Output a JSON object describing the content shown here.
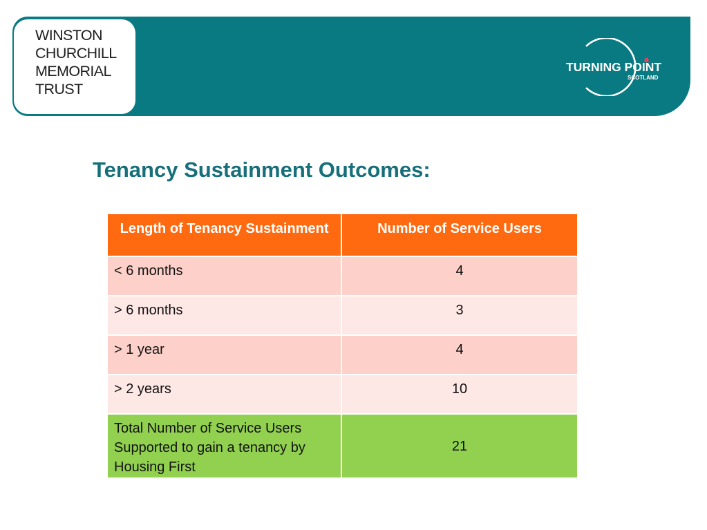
{
  "header": {
    "org_left": {
      "lines": [
        "WINSTON",
        "CHURCHILL",
        "MEMORIAL",
        "TRUST"
      ]
    },
    "org_right": {
      "name_line1": "TURNING POINT",
      "name_line2": "SCOTLAND",
      "accent_color": "#e8405e"
    },
    "banner_color": "#0a7a82"
  },
  "slide": {
    "title": "Tenancy Sustainment Outcomes:"
  },
  "table": {
    "headers": [
      "Length of Tenancy Sustainment",
      "Number of Service Users"
    ],
    "rows": [
      {
        "period": "< 6 months",
        "users": "4"
      },
      {
        "period": "> 6 months",
        "users": "3"
      },
      {
        "period": "> 1 year",
        "users": "4"
      },
      {
        "period": "> 2 years",
        "users": "10"
      }
    ],
    "total": {
      "label": "Total Number of Service Users Supported to gain a tenancy by Housing First",
      "value": "21"
    },
    "colors": {
      "header": "#ff6a10",
      "row_dark": "#fdd0ca",
      "row_light": "#fee8e6",
      "total": "#92d14f"
    }
  }
}
